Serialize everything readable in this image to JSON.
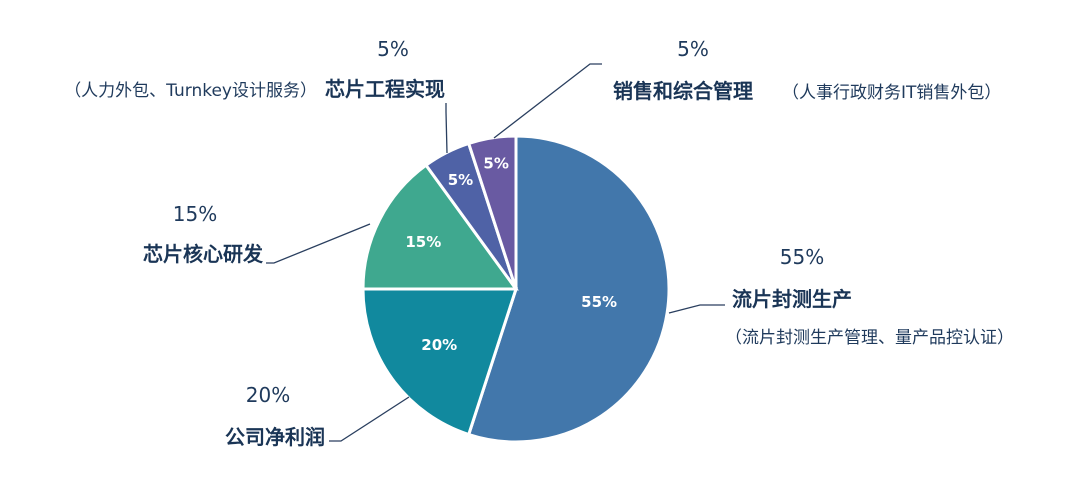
{
  "chart_data": {
    "type": "pie",
    "slices": [
      {
        "label": "流片封测生产",
        "value": 55,
        "value_label": "55%",
        "inner_label": "55%",
        "description": "（流片封测生产管理、量产品控认证）",
        "color": "#4277ab"
      },
      {
        "label": "公司净利润",
        "value": 20,
        "value_label": "20%",
        "inner_label": "20%",
        "description": "",
        "color": "#11899e"
      },
      {
        "label": "芯片核心研发",
        "value": 15,
        "value_label": "15%",
        "inner_label": "15%",
        "description": "",
        "color": "#3fa88f"
      },
      {
        "label": "芯片工程实现",
        "value": 5,
        "value_label": "5%",
        "inner_label": "5%",
        "description": "（人力外包、Turnkey设计服务）",
        "color": "#4f62a6"
      },
      {
        "label": "销售和综合管理",
        "value": 5,
        "value_label": "5%",
        "inner_label": "5%",
        "description": "（人事行政财务IT销售外包）",
        "color": "#695aa2"
      }
    ]
  }
}
